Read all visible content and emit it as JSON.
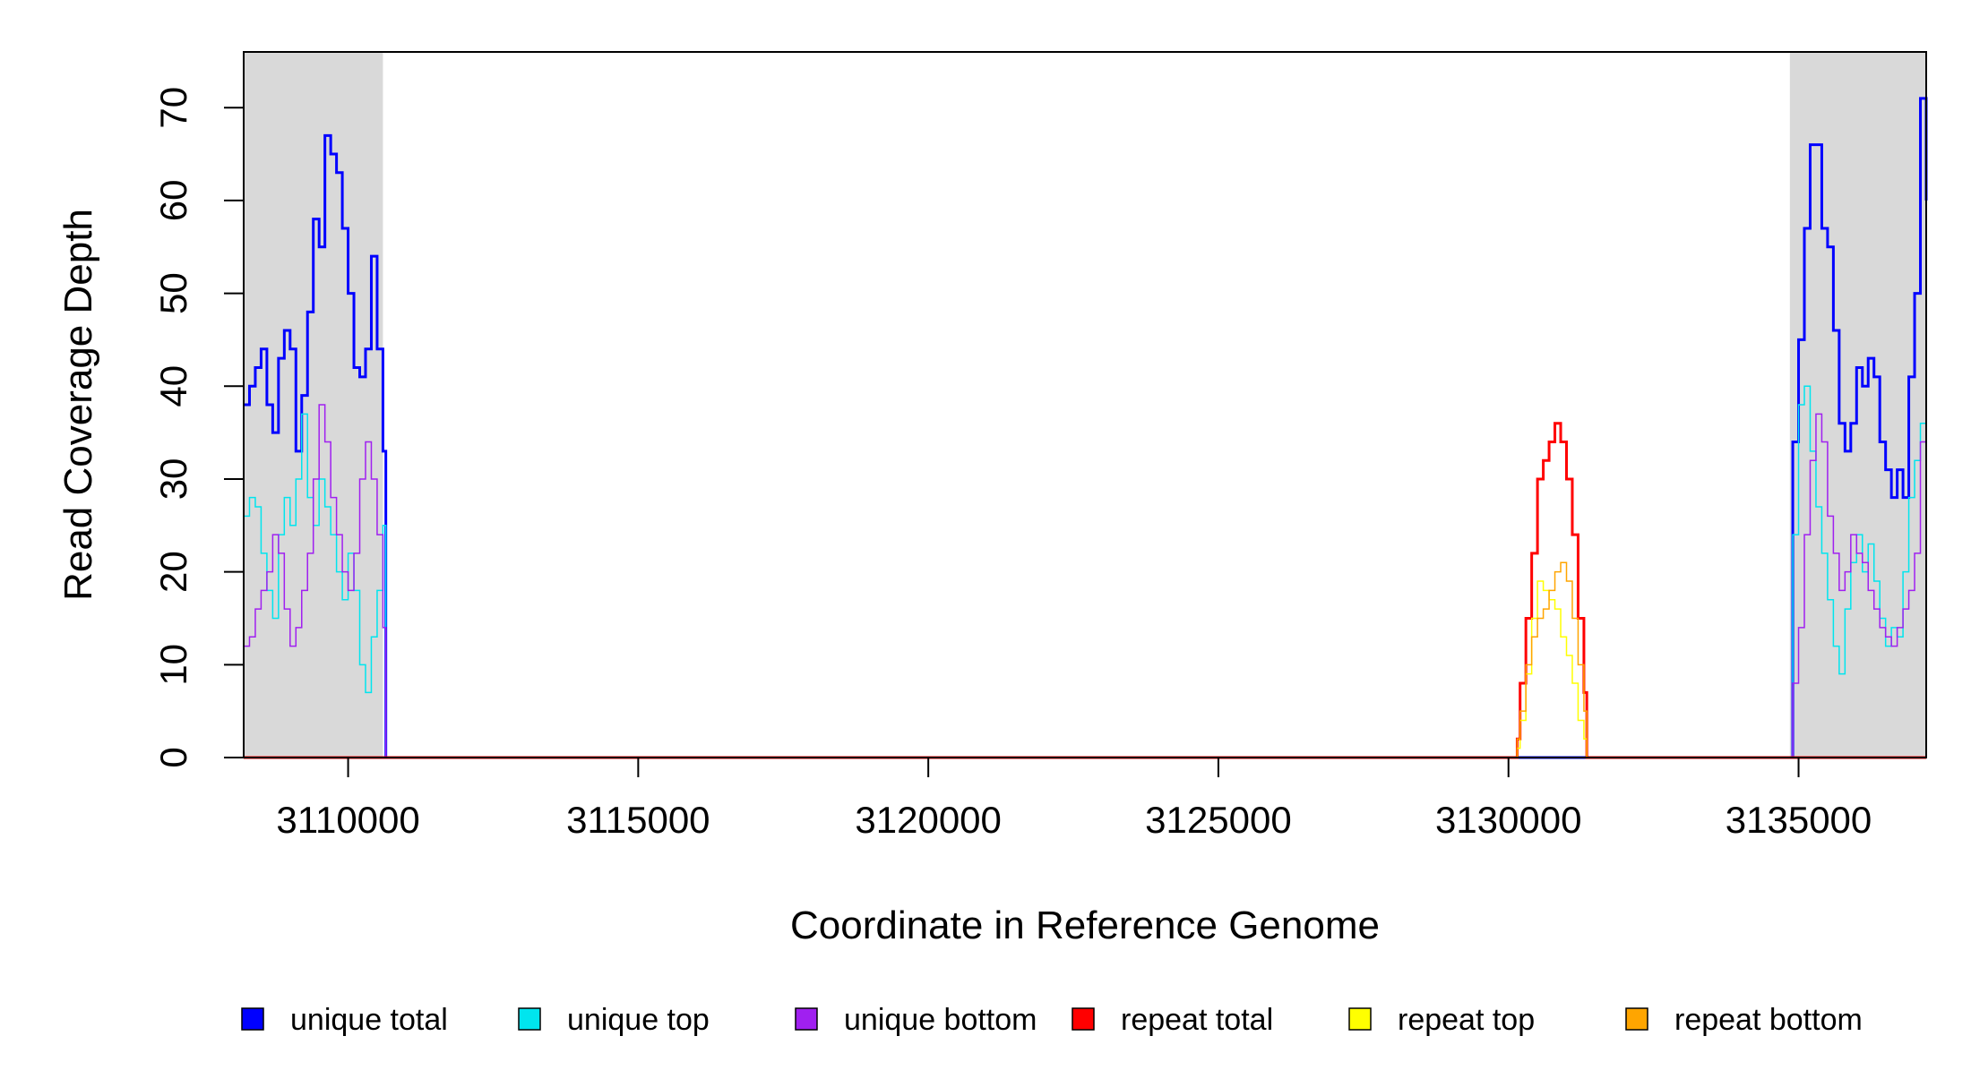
{
  "chart_data": {
    "type": "line",
    "title": "",
    "xlabel": "Coordinate in Reference Genome",
    "ylabel": "Read Coverage Depth",
    "xlim": [
      3108200,
      3137200
    ],
    "ylim": [
      0,
      76
    ],
    "x_ticks": [
      3110000,
      3115000,
      3120000,
      3125000,
      3130000,
      3135000
    ],
    "x_tick_labels": [
      "3110000",
      "3115000",
      "3120000",
      "3125000",
      "3130000",
      "3135000"
    ],
    "y_ticks": [
      0,
      10,
      20,
      30,
      40,
      50,
      60,
      70
    ],
    "y_tick_labels": [
      "0",
      "10",
      "20",
      "30",
      "40",
      "50",
      "60",
      "70"
    ],
    "grid": false,
    "legend_position": "bottom",
    "shaded_regions": [
      {
        "x": [
          3108200,
          3110600
        ],
        "color": "#d9d9d9"
      },
      {
        "x": [
          3134850,
          3137200
        ],
        "color": "#d9d9d9"
      }
    ],
    "series": [
      {
        "name": "unique total",
        "color": "#0000ff",
        "width": 3,
        "x": [
          3108200,
          3108300,
          3108400,
          3108500,
          3108600,
          3108700,
          3108800,
          3108900,
          3109000,
          3109100,
          3109200,
          3109300,
          3109400,
          3109500,
          3109600,
          3109700,
          3109800,
          3109900,
          3110000,
          3110100,
          3110200,
          3110300,
          3110400,
          3110500,
          3110600,
          3110650,
          3134850,
          3134900,
          3135000,
          3135100,
          3135200,
          3135300,
          3135400,
          3135500,
          3135600,
          3135700,
          3135800,
          3135900,
          3136000,
          3136100,
          3136200,
          3136300,
          3136400,
          3136500,
          3136600,
          3136700,
          3136800,
          3136900,
          3137000,
          3137100,
          3137200
        ],
        "y": [
          38,
          40,
          42,
          44,
          38,
          35,
          43,
          46,
          44,
          33,
          39,
          48,
          58,
          55,
          67,
          65,
          63,
          57,
          50,
          42,
          41,
          44,
          54,
          44,
          33,
          0,
          0,
          34,
          45,
          57,
          66,
          66,
          57,
          55,
          46,
          36,
          33,
          36,
          42,
          40,
          43,
          41,
          34,
          31,
          28,
          31,
          28,
          41,
          50,
          71,
          60
        ]
      },
      {
        "name": "unique top",
        "color": "#00e5ee",
        "width": 1.5,
        "x": [
          3108200,
          3108300,
          3108400,
          3108500,
          3108600,
          3108700,
          3108800,
          3108900,
          3109000,
          3109100,
          3109200,
          3109300,
          3109400,
          3109500,
          3109600,
          3109700,
          3109800,
          3109900,
          3110000,
          3110100,
          3110200,
          3110300,
          3110400,
          3110500,
          3110600,
          3110650,
          3134850,
          3134900,
          3135000,
          3135100,
          3135200,
          3135300,
          3135400,
          3135500,
          3135600,
          3135700,
          3135800,
          3135900,
          3136000,
          3136100,
          3136200,
          3136300,
          3136400,
          3136500,
          3136600,
          3136700,
          3136800,
          3136900,
          3137000,
          3137100,
          3137200
        ],
        "y": [
          26,
          28,
          27,
          22,
          18,
          15,
          24,
          28,
          25,
          30,
          37,
          28,
          25,
          30,
          27,
          24,
          20,
          17,
          22,
          18,
          10,
          7,
          13,
          18,
          25,
          0,
          0,
          24,
          38,
          40,
          33,
          27,
          22,
          17,
          12,
          9,
          16,
          21,
          24,
          20,
          23,
          19,
          15,
          12,
          14,
          13,
          20,
          28,
          32,
          36,
          27
        ]
      },
      {
        "name": "unique bottom",
        "color": "#a020f0",
        "width": 1.5,
        "x": [
          3108200,
          3108300,
          3108400,
          3108500,
          3108600,
          3108700,
          3108800,
          3108900,
          3109000,
          3109100,
          3109200,
          3109300,
          3109400,
          3109500,
          3109600,
          3109700,
          3109800,
          3109900,
          3110000,
          3110100,
          3110200,
          3110300,
          3110400,
          3110500,
          3110600,
          3110650,
          3134850,
          3134900,
          3135000,
          3135100,
          3135200,
          3135300,
          3135400,
          3135500,
          3135600,
          3135700,
          3135800,
          3135900,
          3136000,
          3136100,
          3136200,
          3136300,
          3136400,
          3136500,
          3136600,
          3136700,
          3136800,
          3136900,
          3137000,
          3137100,
          3137200
        ],
        "y": [
          12,
          13,
          16,
          18,
          20,
          24,
          22,
          16,
          12,
          14,
          18,
          22,
          30,
          38,
          34,
          28,
          24,
          20,
          18,
          22,
          30,
          34,
          30,
          24,
          14,
          0,
          0,
          8,
          14,
          24,
          32,
          37,
          34,
          26,
          22,
          18,
          20,
          24,
          22,
          21,
          18,
          16,
          14,
          13,
          12,
          14,
          16,
          18,
          22,
          34,
          27
        ]
      },
      {
        "name": "repeat total",
        "color": "#ff0000",
        "width": 3,
        "x": [
          3108200,
          3130100,
          3130150,
          3130200,
          3130300,
          3130400,
          3130500,
          3130600,
          3130700,
          3130800,
          3130900,
          3131000,
          3131100,
          3131200,
          3131300,
          3131350,
          3137200
        ],
        "y": [
          0,
          0,
          2,
          8,
          15,
          22,
          30,
          32,
          34,
          36,
          34,
          30,
          24,
          15,
          7,
          0,
          0
        ]
      },
      {
        "name": "repeat top",
        "color": "#ffff00",
        "width": 1.5,
        "x": [
          3108200,
          3130100,
          3130150,
          3130200,
          3130300,
          3130400,
          3130500,
          3130600,
          3130700,
          3130800,
          3130900,
          3131000,
          3131100,
          3131200,
          3131300,
          3131350,
          3137200
        ],
        "y": [
          0,
          0,
          1,
          4,
          9,
          15,
          19,
          18,
          17,
          16,
          13,
          11,
          8,
          4,
          2,
          0,
          0
        ]
      },
      {
        "name": "repeat bottom",
        "color": "#ffa500",
        "width": 1.5,
        "x": [
          3108200,
          3130100,
          3130150,
          3130200,
          3130300,
          3130400,
          3130500,
          3130600,
          3130700,
          3130800,
          3130900,
          3131000,
          3131100,
          3131200,
          3131300,
          3131350,
          3137200
        ],
        "y": [
          0,
          0,
          2,
          5,
          10,
          13,
          15,
          16,
          18,
          20,
          21,
          19,
          15,
          10,
          5,
          0,
          0
        ]
      }
    ]
  }
}
